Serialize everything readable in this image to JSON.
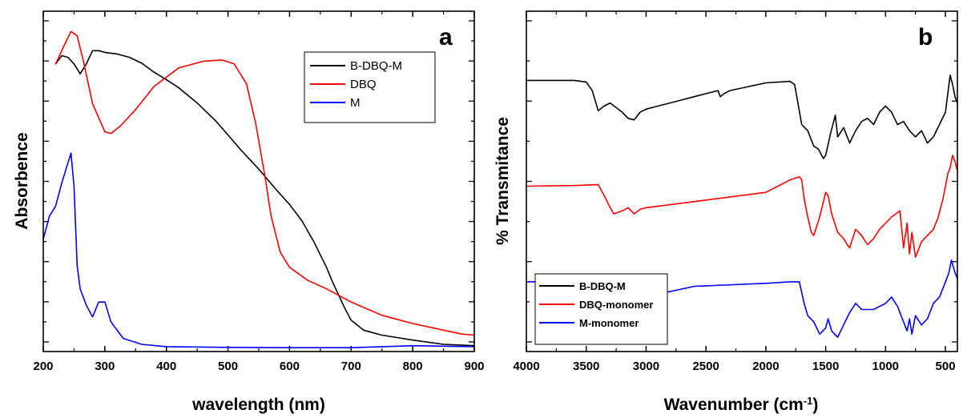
{
  "figure": {
    "panel_a_label": "a",
    "panel_b_label": "b"
  },
  "chart_data": [
    {
      "type": "line",
      "panel": "a",
      "xlabel": "wavelength (nm)",
      "ylabel": "Absorbence",
      "xlim": [
        200,
        900
      ],
      "ylim": [
        0,
        1
      ],
      "x_ticks": [
        "200",
        "300",
        "400",
        "500",
        "600",
        "700",
        "800",
        "900"
      ],
      "y_tick_labels_shown": false,
      "grid": false,
      "legend_position": "top-right",
      "legend_entries": [
        "B-DBQ-M",
        "DBQ",
        "M"
      ],
      "series": [
        {
          "name": "B-DBQ-M",
          "color": "#000000",
          "x": [
            220,
            230,
            240,
            250,
            260,
            270,
            280,
            290,
            300,
            320,
            340,
            360,
            380,
            400,
            420,
            450,
            480,
            500,
            520,
            550,
            580,
            600,
            620,
            640,
            660,
            670,
            690,
            700,
            720,
            750,
            800,
            850,
            900
          ],
          "y": [
            0.86,
            0.885,
            0.88,
            0.86,
            0.83,
            0.86,
            0.9,
            0.9,
            0.895,
            0.89,
            0.88,
            0.862,
            0.835,
            0.812,
            0.788,
            0.742,
            0.688,
            0.645,
            0.602,
            0.542,
            0.476,
            0.435,
            0.386,
            0.32,
            0.245,
            0.2,
            0.12,
            0.085,
            0.055,
            0.04,
            0.025,
            0.012,
            0.008
          ]
        },
        {
          "name": "DBQ",
          "color": "#ff0000",
          "x": [
            220,
            235,
            245,
            255,
            265,
            280,
            300,
            310,
            325,
            350,
            380,
            420,
            460,
            490,
            510,
            530,
            545,
            560,
            570,
            585,
            600,
            630,
            660,
            700,
            750,
            800,
            850,
            880,
            900
          ],
          "y": [
            0.86,
            0.92,
            0.958,
            0.945,
            0.87,
            0.74,
            0.655,
            0.65,
            0.672,
            0.722,
            0.792,
            0.848,
            0.868,
            0.872,
            0.86,
            0.8,
            0.68,
            0.52,
            0.4,
            0.29,
            0.245,
            0.205,
            0.18,
            0.14,
            0.1,
            0.075,
            0.055,
            0.043,
            0.04
          ]
        },
        {
          "name": "M",
          "color": "#0000ff",
          "x": [
            200,
            210,
            220,
            230,
            240,
            245,
            250,
            255,
            260,
            270,
            280,
            290,
            300,
            310,
            330,
            360,
            400,
            500,
            600,
            700,
            800,
            900
          ],
          "y": [
            0.33,
            0.4,
            0.43,
            0.5,
            0.56,
            0.59,
            0.49,
            0.25,
            0.18,
            0.13,
            0.095,
            0.14,
            0.14,
            0.08,
            0.03,
            0.012,
            0.005,
            0.003,
            0.002,
            0.002,
            0.008,
            0.005
          ]
        }
      ]
    },
    {
      "type": "line",
      "panel": "b",
      "xlabel": "Wavenumber (cm-1)",
      "ylabel": "% Transmitance",
      "xlim": [
        4000,
        400
      ],
      "ylim": [
        0,
        1
      ],
      "x_ticks": [
        "4000",
        "3500",
        "3000",
        "2500",
        "2000",
        "1500",
        "1000",
        "500"
      ],
      "y_tick_labels_shown": false,
      "grid": false,
      "legend_position": "bottom-left",
      "legend_entries": [
        "B-DBQ-M",
        "DBQ-monomer",
        "M-monomer"
      ],
      "series": [
        {
          "name": "B-DBQ-M",
          "color": "#000000",
          "x": [
            4000,
            3700,
            3600,
            3500,
            3450,
            3400,
            3350,
            3300,
            3200,
            3150,
            3100,
            3050,
            3000,
            2900,
            2800,
            2600,
            2400,
            2380,
            2350,
            2300,
            2000,
            1800,
            1760,
            1700,
            1650,
            1600,
            1560,
            1520,
            1500,
            1460,
            1420,
            1400,
            1350,
            1300,
            1250,
            1200,
            1150,
            1100,
            1050,
            1000,
            950,
            900,
            850,
            800,
            750,
            700,
            650,
            600,
            550,
            500,
            480,
            460,
            440,
            420,
            400
          ],
          "y": [
            0.843,
            0.843,
            0.843,
            0.838,
            0.81,
            0.745,
            0.76,
            0.77,
            0.74,
            0.72,
            0.715,
            0.74,
            0.75,
            0.76,
            0.77,
            0.79,
            0.81,
            0.79,
            0.8,
            0.81,
            0.835,
            0.84,
            0.83,
            0.7,
            0.68,
            0.63,
            0.62,
            0.59,
            0.6,
            0.67,
            0.73,
            0.66,
            0.69,
            0.64,
            0.68,
            0.71,
            0.72,
            0.7,
            0.74,
            0.76,
            0.74,
            0.7,
            0.71,
            0.68,
            0.66,
            0.68,
            0.64,
            0.66,
            0.7,
            0.74,
            0.8,
            0.86,
            0.83,
            0.79,
            0.77
          ]
        },
        {
          "name": "DBQ-monomer",
          "color": "#ff0000",
          "x": [
            4000,
            3600,
            3400,
            3350,
            3300,
            3270,
            3200,
            3150,
            3100,
            3050,
            3000,
            2600,
            2000,
            1800,
            1720,
            1700,
            1680,
            1650,
            1620,
            1600,
            1550,
            1500,
            1480,
            1450,
            1400,
            1350,
            1320,
            1300,
            1250,
            1200,
            1150,
            1100,
            1050,
            950,
            880,
            850,
            820,
            800,
            780,
            750,
            700,
            650,
            600,
            560,
            520,
            500,
            480,
            460,
            440,
            420,
            400
          ],
          "y": [
            0.5,
            0.502,
            0.505,
            0.47,
            0.43,
            0.41,
            0.42,
            0.43,
            0.41,
            0.425,
            0.43,
            0.45,
            0.48,
            0.52,
            0.53,
            0.52,
            0.46,
            0.4,
            0.35,
            0.34,
            0.4,
            0.48,
            0.47,
            0.41,
            0.35,
            0.33,
            0.31,
            0.3,
            0.36,
            0.34,
            0.31,
            0.33,
            0.36,
            0.4,
            0.42,
            0.3,
            0.38,
            0.28,
            0.35,
            0.27,
            0.32,
            0.34,
            0.36,
            0.4,
            0.46,
            0.5,
            0.54,
            0.56,
            0.6,
            0.58,
            0.55
          ]
        },
        {
          "name": "M-monomer",
          "color": "#0000ff",
          "x": [
            4000,
            3700,
            3600,
            3500,
            3450,
            3400,
            3350,
            3300,
            3250,
            3200,
            3150,
            3100,
            3050,
            3000,
            2900,
            2600,
            2000,
            1800,
            1720,
            1680,
            1650,
            1600,
            1550,
            1500,
            1480,
            1450,
            1400,
            1350,
            1300,
            1250,
            1200,
            1100,
            1000,
            950,
            900,
            850,
            820,
            800,
            780,
            750,
            700,
            650,
            600,
            550,
            500,
            470,
            450,
            420,
            400
          ],
          "y": [
            0.19,
            0.19,
            0.19,
            0.185,
            0.16,
            0.13,
            0.14,
            0.12,
            0.11,
            0.1,
            0.085,
            0.09,
            0.11,
            0.13,
            0.15,
            0.175,
            0.185,
            0.19,
            0.19,
            0.12,
            0.08,
            0.06,
            0.02,
            0.04,
            0.07,
            0.03,
            0.01,
            0.05,
            0.09,
            0.12,
            0.1,
            0.1,
            0.12,
            0.14,
            0.11,
            0.06,
            0.03,
            0.07,
            0.02,
            0.08,
            0.05,
            0.07,
            0.12,
            0.14,
            0.19,
            0.22,
            0.26,
            0.22,
            0.2
          ]
        }
      ]
    }
  ]
}
